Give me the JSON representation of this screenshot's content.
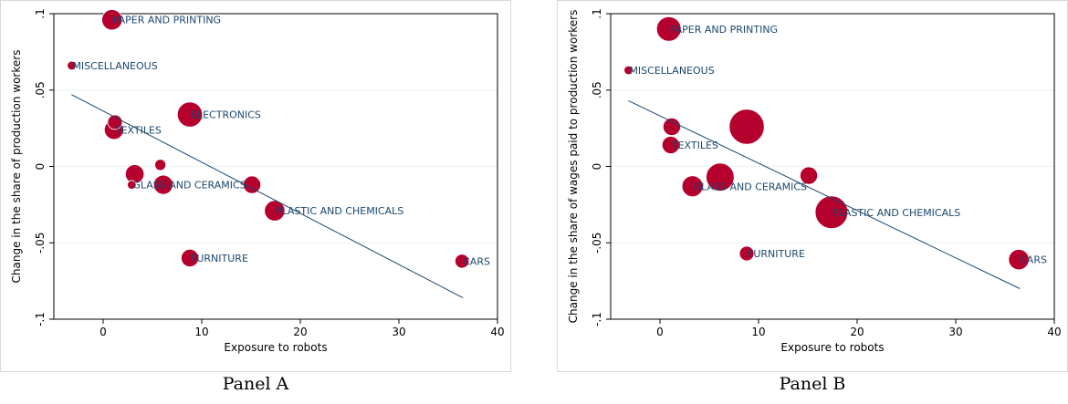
{
  "chart_data": [
    {
      "type": "scatter",
      "panel_caption": "Panel A",
      "xlabel": "Exposure to robots",
      "ylabel": "Change in the share of production workers",
      "xlim": [
        -5,
        40
      ],
      "ylim": [
        -0.1,
        0.1
      ],
      "xticks": [
        0,
        10,
        20,
        30,
        40
      ],
      "yticks": [
        -0.1,
        -0.05,
        0,
        0.05,
        0.1
      ],
      "xtick_labels": [
        "0",
        "10",
        "20",
        "30",
        "40"
      ],
      "ytick_labels": [
        "-.1",
        "-.05",
        "0",
        ".05",
        ".1"
      ],
      "grid": "horizontal",
      "marker_color": "#b5002d",
      "line_color": "#1a476f",
      "points": [
        {
          "label": "PAPER AND PRINTING",
          "x": 0.9,
          "y": 0.096,
          "size": 3.5
        },
        {
          "label": "MISCELLANEOUS",
          "x": -3.2,
          "y": 0.066,
          "size": 1.5
        },
        {
          "label": "",
          "x": 1.2,
          "y": 0.029,
          "size": 2.5
        },
        {
          "label": "TEXTILES",
          "x": 1.1,
          "y": 0.024,
          "size": 3.3
        },
        {
          "label": "ELECTRONICS",
          "x": 8.8,
          "y": 0.034,
          "size": 4.3
        },
        {
          "label": "",
          "x": 5.8,
          "y": 0.001,
          "size": 1.9
        },
        {
          "label": "",
          "x": 3.2,
          "y": -0.005,
          "size": 3.2
        },
        {
          "label": "GLASS AND CERAMICS",
          "x": 2.9,
          "y": -0.012,
          "size": 1.5
        },
        {
          "label": "",
          "x": 6.1,
          "y": -0.012,
          "size": 3.3
        },
        {
          "label": "",
          "x": 15.1,
          "y": -0.012,
          "size": 3.0
        },
        {
          "label": "PLASTIC AND CHEMICALS",
          "x": 17.4,
          "y": -0.029,
          "size": 3.5
        },
        {
          "label": "FURNITURE",
          "x": 8.8,
          "y": -0.06,
          "size": 3.0
        },
        {
          "label": "CARS",
          "x": 36.4,
          "y": -0.062,
          "size": 2.4
        }
      ],
      "fit_line": {
        "x": [
          -3.2,
          36.5
        ],
        "y": [
          0.047,
          -0.086
        ]
      }
    },
    {
      "type": "scatter",
      "panel_caption": "Panel B",
      "xlabel": "Exposure to robots",
      "ylabel": "Change in the share of wages paid to production workers",
      "xlim": [
        -5,
        40
      ],
      "ylim": [
        -0.1,
        0.1
      ],
      "xticks": [
        0,
        10,
        20,
        30,
        40
      ],
      "yticks": [
        -0.1,
        -0.05,
        0,
        0.05,
        0.1
      ],
      "xtick_labels": [
        "0",
        "10",
        "20",
        "30",
        "40"
      ],
      "ytick_labels": [
        "-.1",
        "-.05",
        "0",
        ".05",
        ".1"
      ],
      "grid": "horizontal",
      "marker_color": "#b5002d",
      "line_color": "#1a476f",
      "points": [
        {
          "label": "PAPER AND PRINTING",
          "x": 0.9,
          "y": 0.09,
          "size": 4.2
        },
        {
          "label": "MISCELLANEOUS",
          "x": -3.2,
          "y": 0.063,
          "size": 1.5
        },
        {
          "label": "",
          "x": 1.2,
          "y": 0.026,
          "size": 3.0
        },
        {
          "label": "TEXTILES",
          "x": 1.1,
          "y": 0.014,
          "size": 3.0
        },
        {
          "label": "",
          "x": 8.8,
          "y": 0.026,
          "size": 6.0
        },
        {
          "label": "GLASS AND CERAMICS",
          "x": 3.3,
          "y": -0.013,
          "size": 3.6
        },
        {
          "label": "",
          "x": 6.1,
          "y": -0.007,
          "size": 4.8
        },
        {
          "label": "",
          "x": 15.1,
          "y": -0.006,
          "size": 3.0
        },
        {
          "label": "PLASTIC AND CHEMICALS",
          "x": 17.4,
          "y": -0.03,
          "size": 5.6
        },
        {
          "label": "FURNITURE",
          "x": 8.8,
          "y": -0.057,
          "size": 2.5
        },
        {
          "label": "CARS",
          "x": 36.4,
          "y": -0.061,
          "size": 3.5
        }
      ],
      "fit_line": {
        "x": [
          -3.2,
          36.5
        ],
        "y": [
          0.043,
          -0.08
        ]
      }
    }
  ]
}
